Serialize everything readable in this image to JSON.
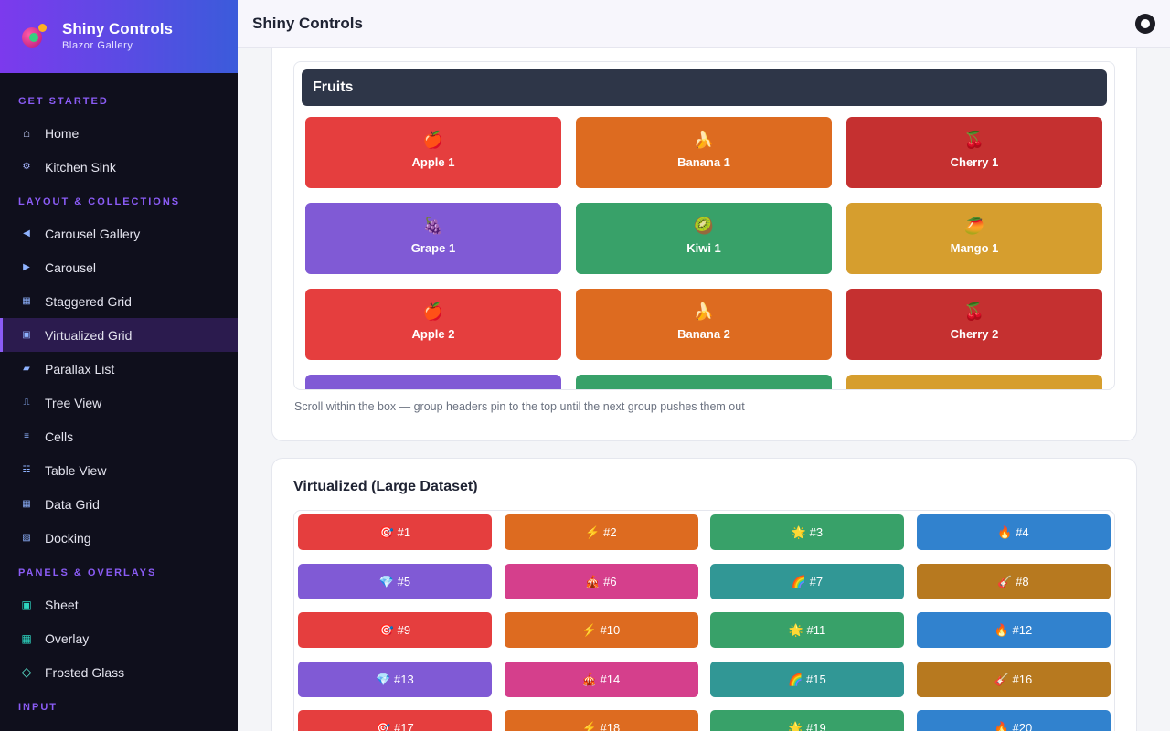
{
  "brand": {
    "title": "Shiny Controls",
    "subtitle": "Blazor Gallery"
  },
  "topbar": {
    "title": "Shiny Controls",
    "github_icon": "github-icon"
  },
  "sidebar": {
    "sections": [
      {
        "label": "GET STARTED",
        "items": [
          {
            "label": "Home",
            "icon": "home-icon",
            "glyph": "⌂"
          },
          {
            "label": "Kitchen Sink",
            "icon": "gear-icon",
            "glyph": "⚙"
          }
        ]
      },
      {
        "label": "LAYOUT & COLLECTIONS",
        "items": [
          {
            "label": "Carousel Gallery",
            "icon": "triangle-left-icon",
            "glyph": "◀"
          },
          {
            "label": "Carousel",
            "icon": "triangle-right-icon",
            "glyph": "▶"
          },
          {
            "label": "Staggered Grid",
            "icon": "grid-icon",
            "glyph": "▦"
          },
          {
            "label": "Virtualized Grid",
            "icon": "square-icon",
            "glyph": "▣",
            "active": true
          },
          {
            "label": "Parallax List",
            "icon": "parallelogram-icon",
            "glyph": "▰"
          },
          {
            "label": "Tree View",
            "icon": "tree-icon",
            "glyph": "⎍"
          },
          {
            "label": "Cells",
            "icon": "lines-icon",
            "glyph": "≡"
          },
          {
            "label": "Table View",
            "icon": "table-icon",
            "glyph": "☷"
          },
          {
            "label": "Data Grid",
            "icon": "datagrid-icon",
            "glyph": "▦"
          },
          {
            "label": "Docking",
            "icon": "docking-icon",
            "glyph": "▨"
          }
        ]
      },
      {
        "label": "PANELS & OVERLAYS",
        "items": [
          {
            "label": "Sheet",
            "icon": "sheet-icon",
            "glyph": "▣"
          },
          {
            "label": "Overlay",
            "icon": "overlay-icon",
            "glyph": "▦"
          },
          {
            "label": "Frosted Glass",
            "icon": "diamond-icon",
            "glyph": "◇"
          }
        ]
      },
      {
        "label": "INPUT",
        "items": []
      }
    ]
  },
  "grouped": {
    "group_header": "Fruits",
    "hint": "Scroll within the box — group headers pin to the top until the next group pushes them out",
    "items": [
      {
        "emoji": "🍎",
        "label": "Apple 1",
        "color": "#e53e3e"
      },
      {
        "emoji": "🍌",
        "label": "Banana 1",
        "color": "#dd6b20"
      },
      {
        "emoji": "🍒",
        "label": "Cherry 1",
        "color": "#c53030"
      },
      {
        "emoji": "🍇",
        "label": "Grape 1",
        "color": "#805ad5"
      },
      {
        "emoji": "🥝",
        "label": "Kiwi 1",
        "color": "#38a169"
      },
      {
        "emoji": "🥭",
        "label": "Mango 1",
        "color": "#d69e2e"
      },
      {
        "emoji": "🍎",
        "label": "Apple 2",
        "color": "#e53e3e"
      },
      {
        "emoji": "🍌",
        "label": "Banana 2",
        "color": "#dd6b20"
      },
      {
        "emoji": "🍒",
        "label": "Cherry 2",
        "color": "#c53030"
      },
      {
        "emoji": "",
        "label": "",
        "color": "#805ad5"
      },
      {
        "emoji": "",
        "label": "",
        "color": "#38a169"
      },
      {
        "emoji": "",
        "label": "",
        "color": "#d69e2e"
      }
    ]
  },
  "virtualized": {
    "title": "Virtualized (Large Dataset)",
    "items": [
      {
        "text": "🎯 #1",
        "color": "#e53e3e"
      },
      {
        "text": "⚡ #2",
        "color": "#dd6b20"
      },
      {
        "text": "🌟 #3",
        "color": "#38a169"
      },
      {
        "text": "🔥 #4",
        "color": "#3182ce"
      },
      {
        "text": "💎 #5",
        "color": "#805ad5"
      },
      {
        "text": "🎪 #6",
        "color": "#d53f8c"
      },
      {
        "text": "🌈 #7",
        "color": "#319795"
      },
      {
        "text": "🎸 #8",
        "color": "#b7791f"
      },
      {
        "text": "🎯 #9",
        "color": "#e53e3e"
      },
      {
        "text": "⚡ #10",
        "color": "#dd6b20"
      },
      {
        "text": "🌟 #11",
        "color": "#38a169"
      },
      {
        "text": "🔥 #12",
        "color": "#3182ce"
      },
      {
        "text": "💎 #13",
        "color": "#805ad5"
      },
      {
        "text": "🎪 #14",
        "color": "#d53f8c"
      },
      {
        "text": "🌈 #15",
        "color": "#319795"
      },
      {
        "text": "🎸 #16",
        "color": "#b7791f"
      },
      {
        "text": "🎯 #17",
        "color": "#e53e3e"
      },
      {
        "text": "⚡ #18",
        "color": "#dd6b20"
      },
      {
        "text": "🌟 #19",
        "color": "#38a169"
      },
      {
        "text": "🔥 #20",
        "color": "#3182ce"
      }
    ]
  }
}
